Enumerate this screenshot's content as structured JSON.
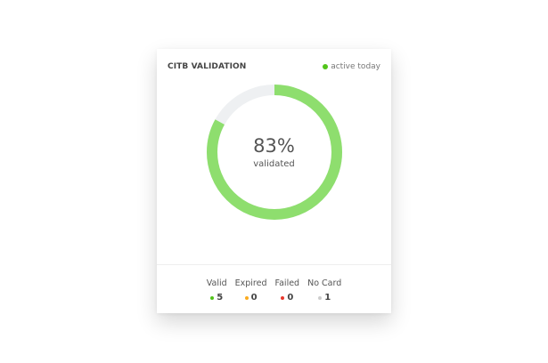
{
  "card": {
    "title": "CITB VALIDATION",
    "status": {
      "label": "active today",
      "color": "#52c41a"
    },
    "progress": {
      "percent": 83,
      "label": "83%",
      "sub": "validated",
      "color": "#8ede6e",
      "track_color": "#eef0f2"
    },
    "legend": [
      {
        "label": "Valid",
        "value": "5",
        "color": "#52c41a"
      },
      {
        "label": "Expired",
        "value": "0",
        "color": "#fbab1e"
      },
      {
        "label": "Failed",
        "value": "0",
        "color": "#e8382c"
      },
      {
        "label": "No Card",
        "value": "1",
        "color": "#cccccc"
      }
    ]
  }
}
